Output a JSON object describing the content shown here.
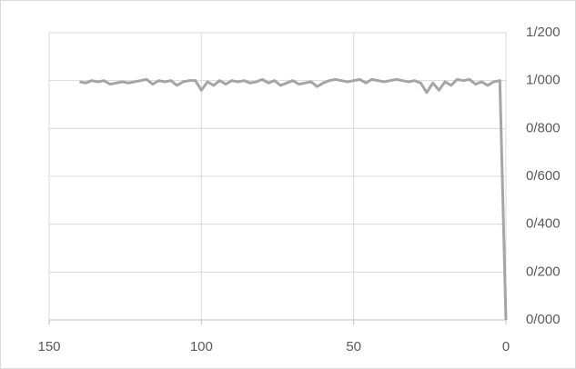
{
  "chart_data": {
    "type": "line",
    "x": [
      140,
      138,
      136,
      134,
      132,
      130,
      128,
      126,
      124,
      122,
      120,
      118,
      116,
      114,
      112,
      110,
      108,
      106,
      104,
      102,
      100,
      98,
      96,
      94,
      92,
      90,
      88,
      86,
      84,
      82,
      80,
      78,
      76,
      74,
      72,
      70,
      68,
      66,
      64,
      62,
      60,
      58,
      56,
      54,
      52,
      50,
      48,
      46,
      44,
      42,
      40,
      38,
      36,
      34,
      32,
      30,
      28,
      26,
      24,
      22,
      20,
      18,
      16,
      14,
      12,
      10,
      8,
      6,
      4,
      2,
      0
    ],
    "values": [
      0.995,
      0.99,
      1.0,
      0.995,
      1.0,
      0.985,
      0.99,
      0.995,
      0.99,
      0.995,
      1.0,
      1.005,
      0.985,
      1.0,
      0.995,
      1.0,
      0.98,
      0.995,
      1.0,
      1.0,
      0.96,
      0.995,
      0.98,
      1.0,
      0.985,
      1.0,
      0.995,
      1.0,
      0.99,
      0.995,
      1.005,
      0.99,
      1.0,
      0.98,
      0.99,
      1.0,
      0.985,
      0.99,
      0.995,
      0.975,
      0.99,
      1.0,
      1.005,
      1.0,
      0.995,
      1.0,
      1.005,
      0.99,
      1.005,
      1.0,
      0.995,
      1.0,
      1.005,
      1.0,
      0.995,
      1.0,
      0.99,
      0.95,
      0.99,
      0.96,
      0.995,
      0.98,
      1.005,
      1.0,
      1.005,
      0.985,
      0.995,
      0.98,
      0.995,
      1.0,
      0
    ],
    "color": "#a5a5a5",
    "xlim": [
      150,
      0
    ],
    "xticks": [
      150,
      100,
      50,
      0
    ],
    "ylim": [
      0,
      1.2
    ],
    "yticks": [
      {
        "value": 0,
        "label": "0/000"
      },
      {
        "value": 0.2,
        "label": "0/200"
      },
      {
        "value": 0.4,
        "label": "0/400"
      },
      {
        "value": 0.6,
        "label": "0/600"
      },
      {
        "value": 0.8,
        "label": "0/800"
      },
      {
        "value": 1.0,
        "label": "1/000"
      },
      {
        "value": 1.2,
        "label": "1/200"
      }
    ],
    "grid": true
  }
}
